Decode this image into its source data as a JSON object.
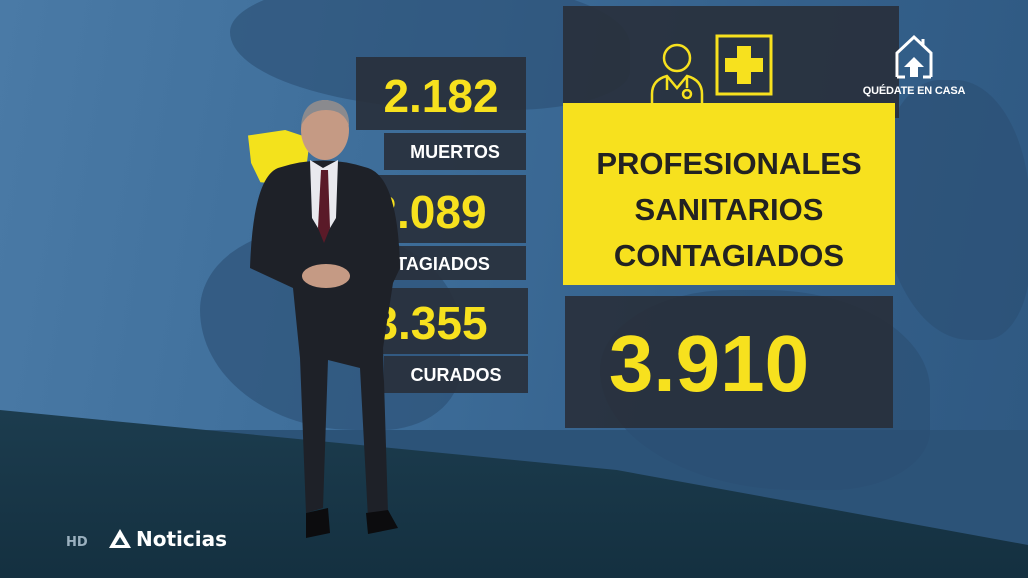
{
  "stats": [
    {
      "value": "2.182",
      "label": "MUERTOS"
    },
    {
      "value": "3.089",
      "label": "CONTAGIADOS"
    },
    {
      "value": "3.355",
      "label": "CURADOS"
    }
  ],
  "feature": {
    "title_lines": [
      "PROFESIONALES",
      "SANITARIOS",
      "CONTAGIADOS"
    ],
    "value": "3.910",
    "icons": [
      "doctor-icon",
      "medical-cross-icon"
    ]
  },
  "corner_badge": {
    "icon": "house-arrow-up-icon",
    "label": "QUÉDATE EN CASA"
  },
  "channel": {
    "hd": "HD",
    "logo": "Noticias"
  },
  "colors": {
    "accent": "#f7e11e",
    "panel": "#282e38",
    "wall": "#3d6d99"
  }
}
